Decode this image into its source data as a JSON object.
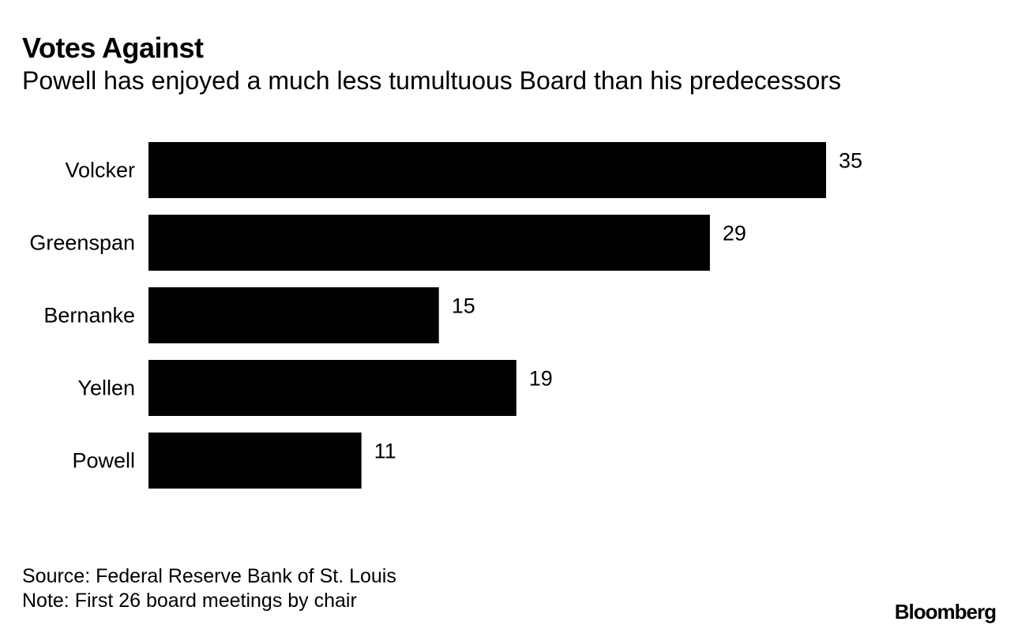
{
  "chart_data": {
    "type": "bar",
    "orientation": "horizontal",
    "title": "Votes Against",
    "subtitle": "Powell has enjoyed a much less tumultuous Board than his predecessors",
    "categories": [
      "Volcker",
      "Greenspan",
      "Bernanke",
      "Yellen",
      "Powell"
    ],
    "values": [
      35,
      29,
      15,
      19,
      11
    ],
    "bar_color": "#000000",
    "xlim": [
      0,
      35
    ],
    "grid": false,
    "legend": "none"
  },
  "footer": {
    "source": "Source: Federal Reserve Bank of St. Louis",
    "note": "Note: First 26 board meetings by chair"
  },
  "logo": {
    "text": "Bloomberg"
  }
}
